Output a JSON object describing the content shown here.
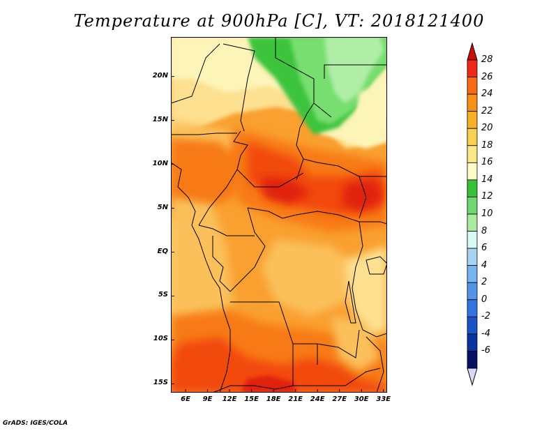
{
  "title": "Temperature at 900hPa [C], VT: 2018121400",
  "credit": "GrADS: IGES/COLA",
  "map": {
    "lat_range": [
      -16,
      24.5
    ],
    "lon_range": [
      4,
      33.5
    ],
    "lat_labels": [
      "20N",
      "15N",
      "10N",
      "5N",
      "EQ",
      "5S",
      "10S",
      "15S"
    ],
    "lat_values": [
      20,
      15,
      10,
      5,
      0,
      -5,
      -10,
      -15
    ],
    "lon_labels": [
      "6E",
      "9E",
      "12E",
      "15E",
      "18E",
      "21E",
      "24E",
      "27E",
      "30E",
      "33E"
    ],
    "lon_values": [
      6,
      9,
      12,
      15,
      18,
      21,
      24,
      27,
      30,
      33
    ],
    "colors": {
      "c28": "#e02010",
      "c26": "#f24a10",
      "c24": "#f77a18",
      "c22": "#f9a030",
      "c20": "#fbc05a",
      "c18": "#fde090",
      "c16": "#fdf4b8",
      "c14": "#3cc43c",
      "c12": "#78de70",
      "c10": "#b0eea8",
      "border": "#000000"
    }
  },
  "colorbar": {
    "labels": [
      "28",
      "26",
      "24",
      "22",
      "20",
      "18",
      "16",
      "14",
      "12",
      "10",
      "8",
      "6",
      "4",
      "2",
      "0",
      "-2",
      "-4",
      "-6"
    ],
    "colors": [
      "#f02818",
      "#f86a14",
      "#f89018",
      "#f8b028",
      "#fad050",
      "#fbe888",
      "#fcfcc8",
      "#38c038",
      "#70d870",
      "#a8eca0",
      "#d8f8f4",
      "#a8d4f4",
      "#78b4f0",
      "#5494e8",
      "#3474e0",
      "#1c54c8",
      "#0c34a0",
      "#081064"
    ],
    "top_triangle": "#c81008",
    "bottom_triangle": "#d8d8f8"
  }
}
